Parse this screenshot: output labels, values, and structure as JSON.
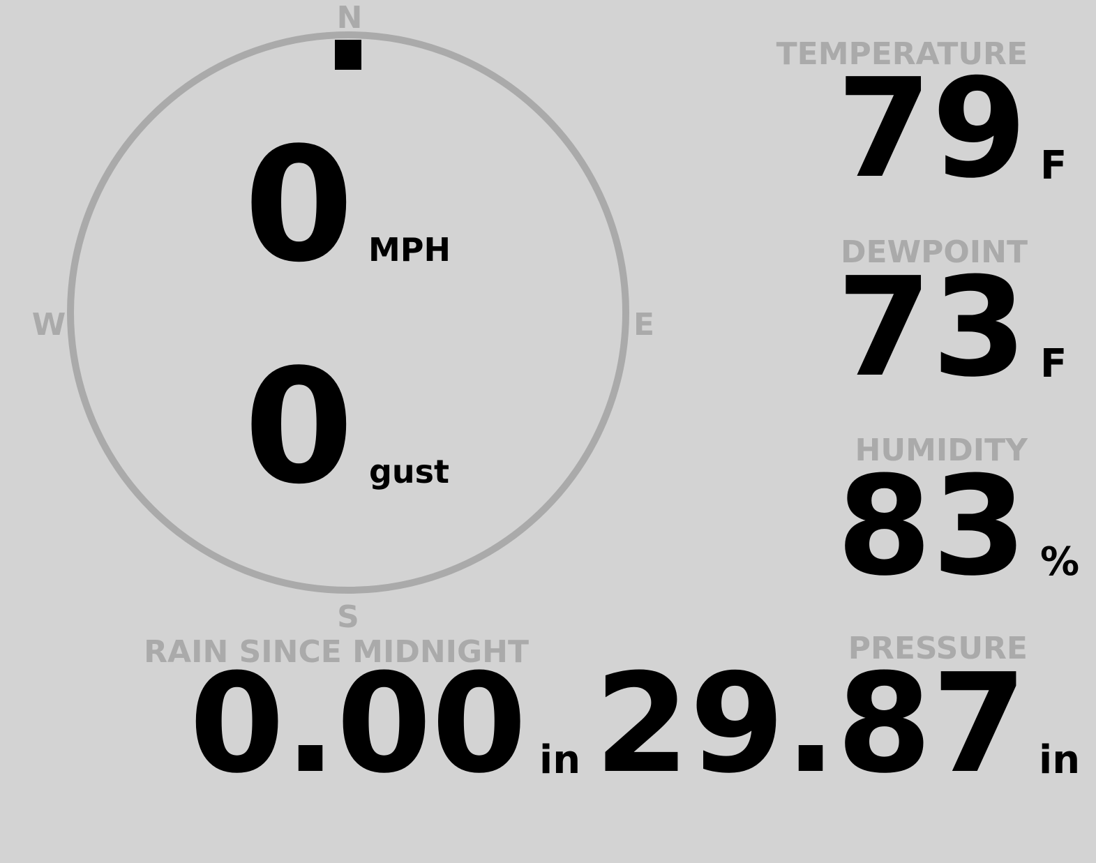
{
  "compass": {
    "north": "N",
    "south": "S",
    "east": "E",
    "west": "W",
    "direction_degrees": 0,
    "ring_color": "#aaaaaa"
  },
  "wind": {
    "speed": "0",
    "speed_unit": "MPH",
    "gust": "0",
    "gust_unit": "gust"
  },
  "rain": {
    "label": "RAIN SINCE MIDNIGHT",
    "value": "0.00",
    "unit": "in"
  },
  "temperature": {
    "label": "TEMPERATURE",
    "value": "79",
    "unit": "F"
  },
  "dewpoint": {
    "label": "DEWPOINT",
    "value": "73",
    "unit": "F"
  },
  "humidity": {
    "label": "HUMIDITY",
    "value": "83",
    "unit": "%"
  },
  "pressure": {
    "label": "PRESSURE",
    "value": "29.87",
    "unit": "in"
  },
  "colors": {
    "background": "#d3d3d3",
    "label": "#aaaaaa",
    "value": "#000000"
  }
}
